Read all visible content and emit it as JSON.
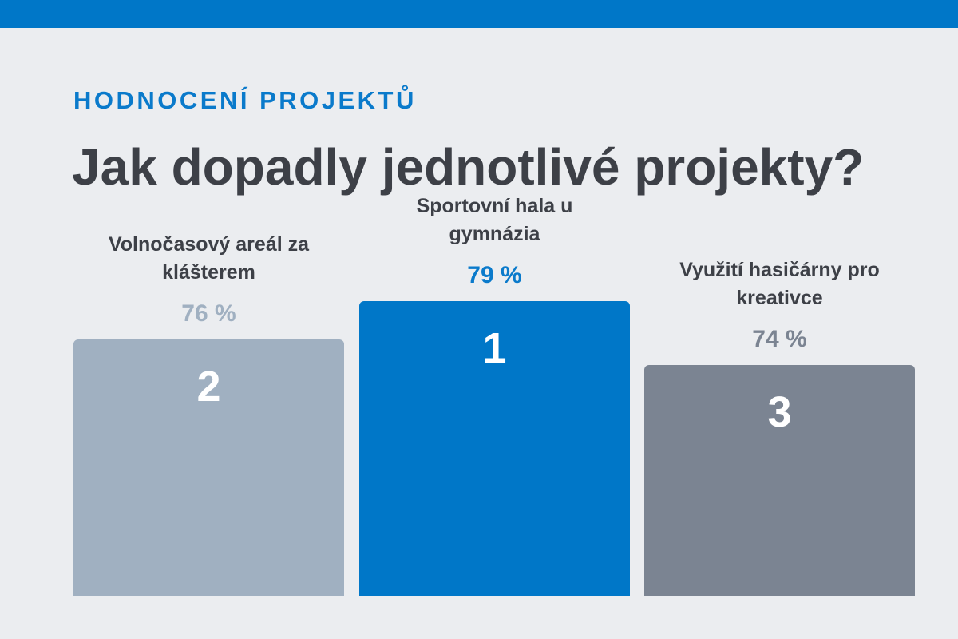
{
  "header": {
    "eyebrow": "HODNOCENÍ PROJEKTŮ",
    "title": "Jak dopadly jednotlivé projekty?"
  },
  "colors": {
    "accent": "#0077c8",
    "background": "#ebedf0",
    "rank1_bar": "#0077c8",
    "rank2_bar": "#a0b0c1",
    "rank3_bar": "#7b8492"
  },
  "chart_data": {
    "type": "bar",
    "categories": [
      "Volnočasový areál za klášterem",
      "Sportovní hala u gymnázia",
      "Využití hasičárny pro kreativce"
    ],
    "values": [
      76,
      79,
      74
    ],
    "value_labels": [
      "76 %",
      "79 %",
      "74 %"
    ],
    "ranks": [
      "2",
      "1",
      "3"
    ],
    "title": "",
    "xlabel": "",
    "ylabel": "",
    "ylim": [
      0,
      100
    ]
  }
}
